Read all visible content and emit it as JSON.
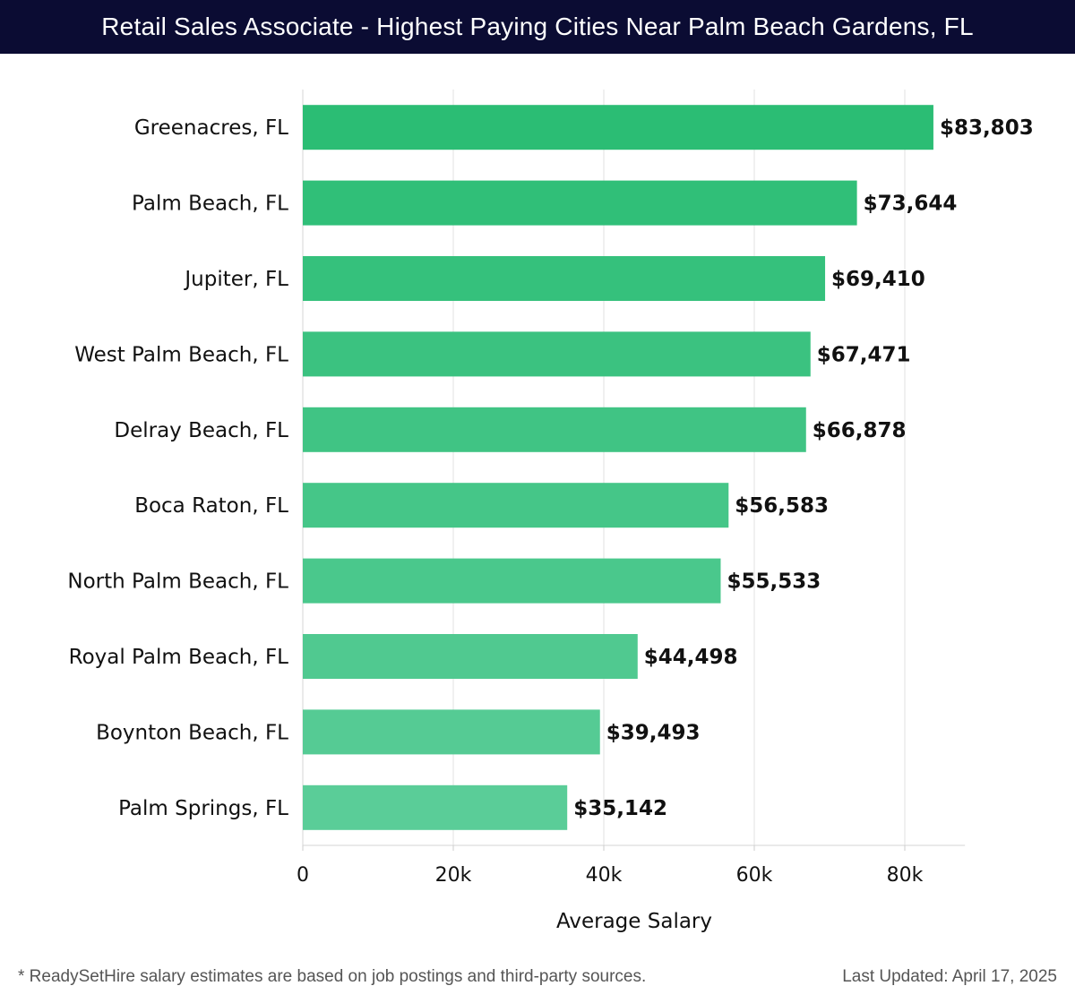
{
  "header": {
    "title": "Retail Sales Associate - Highest Paying Cities Near Palm Beach Gardens, FL"
  },
  "footer": {
    "note": "* ReadySetHire salary estimates are based on job postings and third-party sources.",
    "updated": "Last Updated: April 17, 2025"
  },
  "colors": {
    "title_bg": "#0b0c33",
    "bar_top": "#2bbd74",
    "bar_bottom": "#5acd98",
    "grid": "#e2e2e2"
  },
  "chart_data": {
    "type": "bar",
    "orientation": "horizontal",
    "categories": [
      "Greenacres, FL",
      "Palm Beach, FL",
      "Jupiter, FL",
      "West Palm Beach, FL",
      "Delray Beach, FL",
      "Boca Raton, FL",
      "North Palm Beach, FL",
      "Royal Palm Beach, FL",
      "Boynton Beach, FL",
      "Palm Springs, FL"
    ],
    "values": [
      83803,
      73644,
      69410,
      67471,
      66878,
      56583,
      55533,
      44498,
      39493,
      35142
    ],
    "value_labels": [
      "$83,803",
      "$73,644",
      "$69,410",
      "$67,471",
      "$66,878",
      "$56,583",
      "$55,533",
      "$44,498",
      "$39,493",
      "$35,142"
    ],
    "xlabel": "Average Salary",
    "ylabel": "",
    "xlim": [
      0,
      88000
    ],
    "xticks": [
      0,
      20000,
      40000,
      60000,
      80000
    ],
    "xtick_labels": [
      "0",
      "20k",
      "40k",
      "60k",
      "80k"
    ],
    "grid": true
  }
}
